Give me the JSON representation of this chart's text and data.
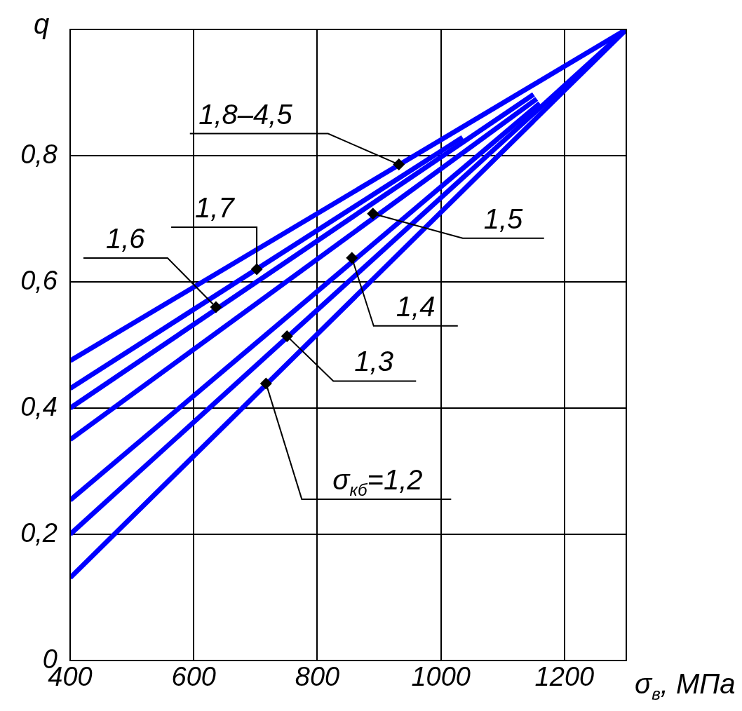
{
  "chart_data": {
    "type": "line",
    "xlabel": "σ$_{в}$, МПа",
    "ylabel": "q",
    "xlim": [
      400,
      1300
    ],
    "xticks": [
      400,
      600,
      800,
      1000,
      1200
    ],
    "ylim": [
      0,
      1
    ],
    "yticks": [
      {
        "value": 0,
        "label": "0"
      },
      {
        "value": 0.2,
        "label": "0,2"
      },
      {
        "value": 0.4,
        "label": "0,4"
      },
      {
        "value": 0.6,
        "label": "0,6"
      },
      {
        "value": 0.8,
        "label": "0,8"
      }
    ],
    "grid": true,
    "legend": false,
    "marker": "none",
    "line_style": "solid",
    "series": [
      {
        "color": "#0000ff",
        "x": [
          400,
          1300
        ],
        "values": [
          0.475,
          1.0
        ]
      },
      {
        "color": "#0000ff",
        "x": [
          400,
          1035
        ],
        "values": [
          0.431,
          0.829
        ]
      },
      {
        "color": "#0000ff",
        "x": [
          400,
          1150
        ],
        "values": [
          0.4,
          0.897
        ]
      },
      {
        "color": "#0000ff",
        "x": [
          400,
          1155
        ],
        "values": [
          0.35,
          0.89
        ]
      },
      {
        "color": "#0000ff",
        "x": [
          400,
          1160
        ],
        "values": [
          0.254,
          0.883
        ]
      },
      {
        "color": "#0000ff",
        "x": [
          400,
          1300
        ],
        "values": [
          0.2,
          1.0
        ]
      },
      {
        "color": "#0000ff",
        "x": [
          400,
          1300
        ],
        "values": [
          0.131,
          1.0
        ]
      }
    ],
    "annotations": [
      {
        "text": "1,8–4,5",
        "x": 932,
        "y": 0.786
      },
      {
        "text": "1,7",
        "x": 702,
        "y": 0.62
      },
      {
        "text": "1,6",
        "x": 636,
        "y": 0.56
      },
      {
        "text": "1,5",
        "x": 890,
        "y": 0.708
      },
      {
        "text": "1,4",
        "x": 856,
        "y": 0.638
      },
      {
        "text": "1,3",
        "x": 751,
        "y": 0.514
      },
      {
        "text": "σ$_{кб}$=1,2",
        "x": 717,
        "y": 0.439
      }
    ]
  }
}
